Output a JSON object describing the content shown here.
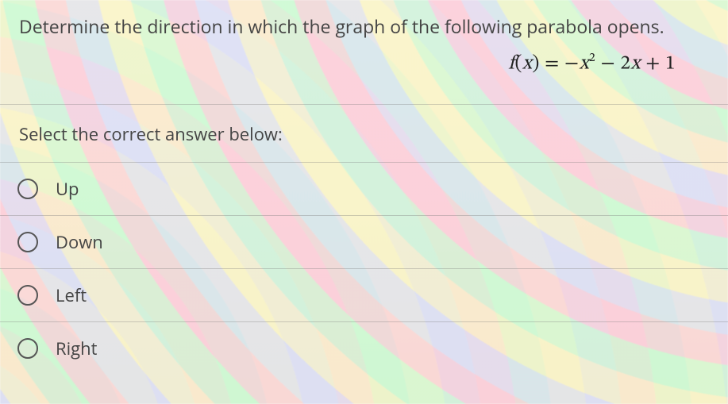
{
  "question": {
    "text": "Determine the direction in which the graph of the following parabola opens.",
    "text_fontsize": 23,
    "text_color": "#444444"
  },
  "formula": {
    "display": "f(x) = −x² − 2x + 1",
    "fontsize": 25,
    "color": "#222222",
    "font_family": "serif"
  },
  "prompt": {
    "text": "Select the correct answer below:",
    "fontsize": 22,
    "color": "#444444"
  },
  "options": [
    {
      "label": "Up",
      "selected": false
    },
    {
      "label": "Down",
      "selected": false
    },
    {
      "label": "Left",
      "selected": false
    },
    {
      "label": "Right",
      "selected": false
    }
  ],
  "style": {
    "radio_border_color": "#555555",
    "divider_color": "rgba(120,120,120,0.35)",
    "background_base": "#f5f1e9",
    "moire_colors": [
      "#ffcade",
      "#c6ffd4",
      "#fff6b8",
      "#cdd6ff"
    ]
  }
}
